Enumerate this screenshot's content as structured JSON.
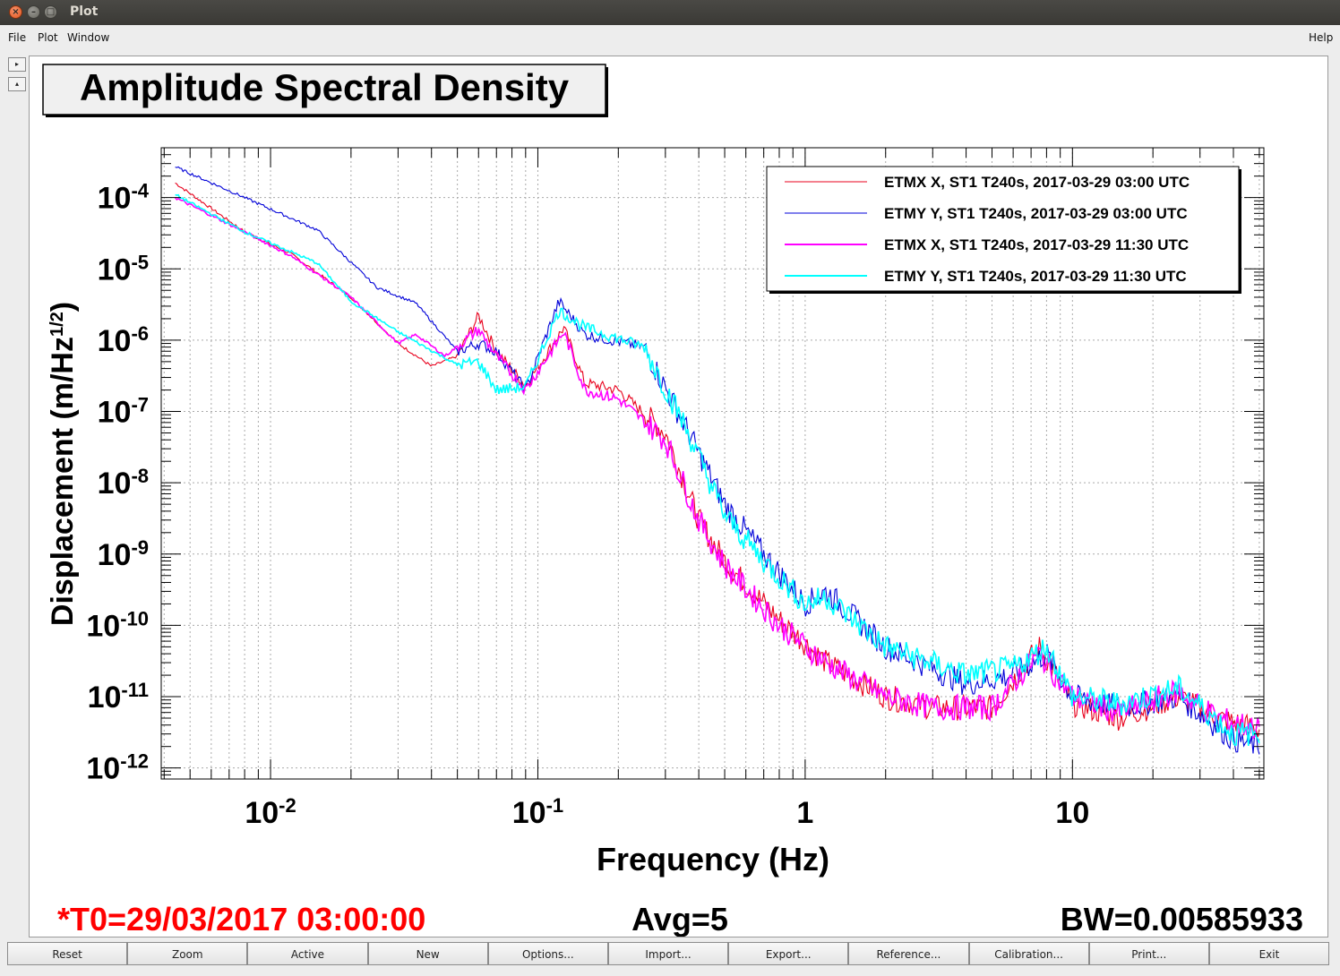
{
  "window": {
    "title": "Plot"
  },
  "menu": {
    "file": "File",
    "plot": "Plot",
    "window": "Window",
    "help": "Help"
  },
  "toolbar_side": {
    "up": "▸",
    "down": "▴"
  },
  "footer": {
    "t0": "*T0=29/03/2017 03:00:00",
    "avg": "Avg=5",
    "bw": "BW=0.00585933"
  },
  "buttons": [
    "Reset",
    "Zoom",
    "Active",
    "New",
    "Options...",
    "Import...",
    "Export...",
    "Reference...",
    "Calibration...",
    "Print...",
    "Exit"
  ],
  "colors": {
    "etmx_0300": "#e8001c",
    "etmy_0300": "#0000d8",
    "etmx_1130": "#ff00ff",
    "etmy_1130": "#00ffff",
    "t0_text": "#ff0000"
  },
  "chart_data": {
    "type": "line",
    "title": "Amplitude Spectral Density",
    "xlabel": "Frequency (Hz)",
    "ylabel": "Displacement (m/Hz^(1/2))",
    "xscale": "log",
    "yscale": "log",
    "xlim": [
      0.0039,
      52
    ],
    "ylim": [
      7e-13,
      0.0005
    ],
    "xticks": [
      "10^-2",
      "10^-1",
      "1",
      "10"
    ],
    "yticks": [
      "10^-4",
      "10^-5",
      "10^-6",
      "10^-7",
      "10^-8",
      "10^-9",
      "10^-10",
      "10^-11",
      "10^-12"
    ],
    "grid": true,
    "legend_position": "top-right",
    "series": [
      {
        "name": "ETMX X, ST1 T240s, 2017-03-29 03:00 UTC",
        "color": "#e8001c",
        "points": [
          [
            0.0044,
            0.00016
          ],
          [
            0.008,
            3.3e-05
          ],
          [
            0.012,
            1.6e-05
          ],
          [
            0.02,
            4e-06
          ],
          [
            0.03,
            9e-07
          ],
          [
            0.04,
            4.3e-07
          ],
          [
            0.05,
            6e-07
          ],
          [
            0.06,
            2.2e-06
          ],
          [
            0.07,
            7e-07
          ],
          [
            0.09,
            2.3e-07
          ],
          [
            0.125,
            1.5e-06
          ],
          [
            0.15,
            2.5e-07
          ],
          [
            0.2,
            2e-07
          ],
          [
            0.3,
            5e-08
          ],
          [
            0.4,
            3e-09
          ],
          [
            0.5,
            8e-10
          ],
          [
            0.8,
            1.2e-10
          ],
          [
            1.2,
            3e-11
          ],
          [
            2,
            1e-11
          ],
          [
            3,
            7e-12
          ],
          [
            5,
            7e-12
          ],
          [
            7.5,
            5e-11
          ],
          [
            10,
            8e-12
          ],
          [
            15,
            5e-12
          ],
          [
            25,
            1e-11
          ],
          [
            35,
            5e-12
          ],
          [
            50,
            3.5e-12
          ]
        ]
      },
      {
        "name": "ETMY Y, ST1 T240s, 2017-03-29 03:00 UTC",
        "color": "#0000d8",
        "points": [
          [
            0.0044,
            0.00027
          ],
          [
            0.008,
            0.0001
          ],
          [
            0.015,
            3.5e-05
          ],
          [
            0.025,
            5.5e-06
          ],
          [
            0.035,
            3.3e-06
          ],
          [
            0.05,
            7e-07
          ],
          [
            0.06,
            9e-07
          ],
          [
            0.07,
            7e-07
          ],
          [
            0.09,
            2e-07
          ],
          [
            0.12,
            3.5e-06
          ],
          [
            0.15,
            1.2e-06
          ],
          [
            0.25,
            8e-07
          ],
          [
            0.35,
            7e-08
          ],
          [
            0.5,
            5e-09
          ],
          [
            0.7,
            1e-09
          ],
          [
            1,
            2e-10
          ],
          [
            1.2,
            3e-10
          ],
          [
            2,
            5e-11
          ],
          [
            4,
            1.5e-11
          ],
          [
            6,
            2e-11
          ],
          [
            8,
            4e-11
          ],
          [
            10,
            1e-11
          ],
          [
            15,
            7e-12
          ],
          [
            25,
            1e-11
          ],
          [
            40,
            2.5e-12
          ],
          [
            50,
            2e-12
          ]
        ]
      },
      {
        "name": "ETMX X, ST1 T240s, 2017-03-29 11:30 UTC",
        "color": "#ff00ff",
        "points": [
          [
            0.0044,
            0.0001
          ],
          [
            0.008,
            3.3e-05
          ],
          [
            0.012,
            1.5e-05
          ],
          [
            0.02,
            4e-06
          ],
          [
            0.03,
            9e-07
          ],
          [
            0.035,
            1.2e-06
          ],
          [
            0.045,
            6e-07
          ],
          [
            0.06,
            1.4e-06
          ],
          [
            0.07,
            6e-07
          ],
          [
            0.09,
            2e-07
          ],
          [
            0.125,
            1.3e-06
          ],
          [
            0.15,
            2e-07
          ],
          [
            0.2,
            1.5e-07
          ],
          [
            0.3,
            4e-08
          ],
          [
            0.4,
            3e-09
          ],
          [
            0.5,
            7e-10
          ],
          [
            0.8,
            1e-10
          ],
          [
            1.2,
            3e-11
          ],
          [
            2,
            1e-11
          ],
          [
            3,
            7e-12
          ],
          [
            5,
            7e-12
          ],
          [
            7.5,
            4e-11
          ],
          [
            10,
            1e-11
          ],
          [
            15,
            6e-12
          ],
          [
            25,
            1.2e-11
          ],
          [
            35,
            5e-12
          ],
          [
            50,
            3.5e-12
          ]
        ]
      },
      {
        "name": "ETMY Y, ST1 T240s, 2017-03-29 11:30 UTC",
        "color": "#00ffff",
        "points": [
          [
            0.0044,
            0.00011
          ],
          [
            0.008,
            3.3e-05
          ],
          [
            0.015,
            1.2e-05
          ],
          [
            0.02,
            3.5e-06
          ],
          [
            0.03,
            1.3e-06
          ],
          [
            0.05,
            4.5e-07
          ],
          [
            0.06,
            5e-07
          ],
          [
            0.07,
            2e-07
          ],
          [
            0.09,
            2.2e-07
          ],
          [
            0.12,
            2.6e-06
          ],
          [
            0.15,
            1.5e-06
          ],
          [
            0.25,
            8e-07
          ],
          [
            0.35,
            7e-08
          ],
          [
            0.5,
            3.5e-09
          ],
          [
            0.7,
            8e-10
          ],
          [
            1,
            2e-10
          ],
          [
            1.2,
            2.5e-10
          ],
          [
            2,
            5e-11
          ],
          [
            4,
            2e-11
          ],
          [
            6,
            2.5e-11
          ],
          [
            8,
            5e-11
          ],
          [
            10,
            1e-11
          ],
          [
            15,
            8e-12
          ],
          [
            25,
            1.3e-11
          ],
          [
            40,
            3e-12
          ],
          [
            50,
            3e-12
          ]
        ]
      }
    ]
  }
}
